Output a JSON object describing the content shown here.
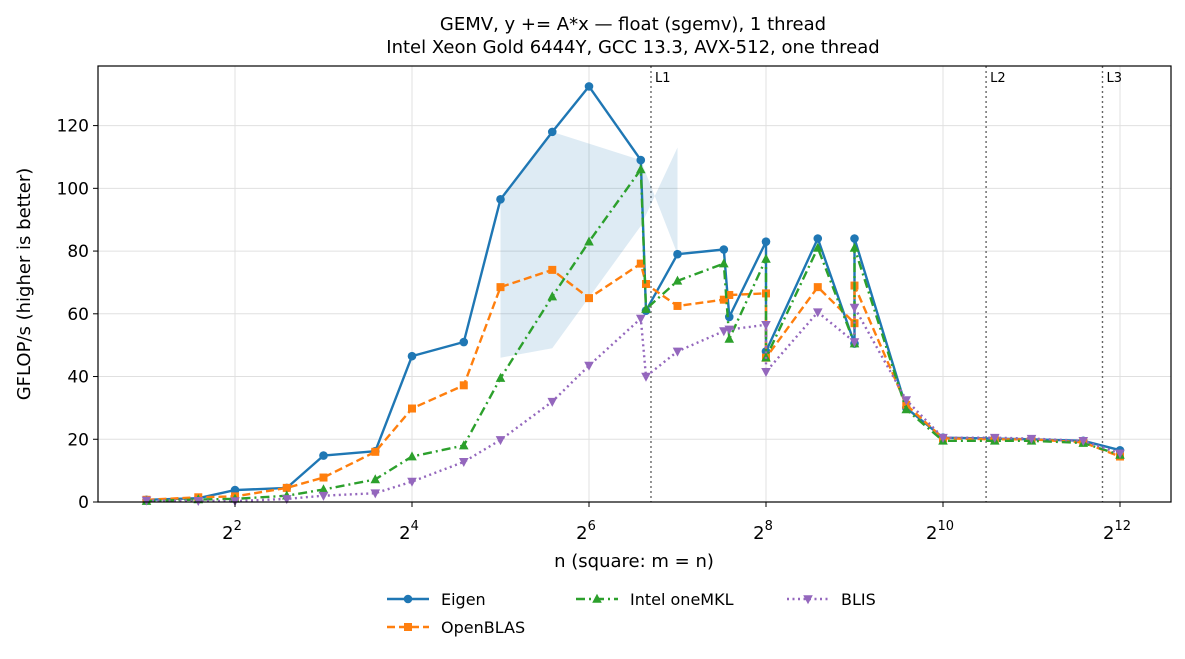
{
  "chart_data": {
    "type": "line",
    "title": "GEMV, y += A*x — float (sgemv), 1 thread",
    "subtitle": "Intel Xeon Gold 6444Y, GCC 13.3, AVX-512, one thread",
    "xlabel": "n (square: m = n)",
    "ylabel": "GFLOP/s (higher is better)",
    "x_scale": "log2",
    "x_ticks": [
      {
        "value": 4,
        "base": "2",
        "exp": "2"
      },
      {
        "value": 16,
        "base": "2",
        "exp": "4"
      },
      {
        "value": 64,
        "base": "2",
        "exp": "6"
      },
      {
        "value": 256,
        "base": "2",
        "exp": "8"
      },
      {
        "value": 1024,
        "base": "2",
        "exp": "10"
      },
      {
        "value": 4096,
        "base": "2",
        "exp": "12"
      }
    ],
    "y_ticks": [
      0,
      20,
      40,
      60,
      80,
      100,
      120
    ],
    "ylim": [
      0,
      139
    ],
    "grid": true,
    "legend_position": "bottom-center",
    "cache_lines": [
      {
        "label": "L1",
        "x": 104
      },
      {
        "label": "L2",
        "x": 1435
      },
      {
        "label": "L3",
        "x": 3571
      }
    ],
    "series": [
      {
        "name": "Eigen",
        "color": "#1f77b4",
        "marker": "circle",
        "dash": "solid",
        "band": {
          "x": [
            32,
            48,
            96,
            128
          ],
          "lower": [
            46,
            49,
            88,
            113
          ]
        },
        "points": [
          [
            2,
            0.7
          ],
          [
            3,
            1.2
          ],
          [
            4,
            3.8
          ],
          [
            6,
            4.5
          ],
          [
            8,
            14.8
          ],
          [
            12,
            16.2
          ],
          [
            16,
            46.5
          ],
          [
            24,
            51
          ],
          [
            32,
            96.5
          ],
          [
            48,
            118
          ],
          [
            64,
            132.5
          ],
          [
            96,
            109
          ],
          [
            100,
            61
          ],
          [
            128,
            79
          ],
          [
            184,
            80.5
          ],
          [
            192,
            59
          ],
          [
            256,
            83
          ],
          [
            256,
            48
          ],
          [
            384,
            84
          ],
          [
            512,
            50.5
          ],
          [
            512,
            84
          ],
          [
            768,
            30
          ],
          [
            1024,
            20.5
          ],
          [
            1536,
            20.2
          ],
          [
            2048,
            20
          ],
          [
            3072,
            19.5
          ],
          [
            4096,
            16.5
          ]
        ]
      },
      {
        "name": "OpenBLAS",
        "color": "#ff7f0e",
        "marker": "square",
        "dash": "dashed",
        "points": [
          [
            2,
            0.7
          ],
          [
            3,
            1.5
          ],
          [
            4,
            1.8
          ],
          [
            6,
            4.5
          ],
          [
            8,
            7.8
          ],
          [
            12,
            16
          ],
          [
            16,
            29.8
          ],
          [
            24,
            37.2
          ],
          [
            32,
            68.5
          ],
          [
            48,
            74
          ],
          [
            64,
            65
          ],
          [
            96,
            76
          ],
          [
            100,
            69.5
          ],
          [
            128,
            62.5
          ],
          [
            184,
            64.5
          ],
          [
            192,
            66
          ],
          [
            256,
            66.5
          ],
          [
            256,
            46
          ],
          [
            384,
            68.5
          ],
          [
            512,
            57
          ],
          [
            512,
            69
          ],
          [
            768,
            31
          ],
          [
            1024,
            20.3
          ],
          [
            1536,
            20
          ],
          [
            2048,
            20
          ],
          [
            3072,
            19
          ],
          [
            4096,
            14.5
          ]
        ]
      },
      {
        "name": "Intel oneMKL",
        "color": "#2ca02c",
        "marker": "triangle-up",
        "dash": "dashdot",
        "points": [
          [
            2,
            0.3
          ],
          [
            3,
            0.8
          ],
          [
            4,
            1.0
          ],
          [
            6,
            2.0
          ],
          [
            8,
            4.0
          ],
          [
            12,
            7.2
          ],
          [
            16,
            14.5
          ],
          [
            24,
            18
          ],
          [
            32,
            39.5
          ],
          [
            48,
            65.5
          ],
          [
            64,
            83
          ],
          [
            96,
            106
          ],
          [
            100,
            61.5
          ],
          [
            128,
            70.5
          ],
          [
            184,
            76
          ],
          [
            192,
            52
          ],
          [
            256,
            77.5
          ],
          [
            256,
            46
          ],
          [
            384,
            81
          ],
          [
            512,
            50.5
          ],
          [
            512,
            81
          ],
          [
            768,
            29.5
          ],
          [
            1024,
            19.5
          ],
          [
            1536,
            19.5
          ],
          [
            2048,
            19.5
          ],
          [
            3072,
            18.8
          ],
          [
            4096,
            15
          ]
        ]
      },
      {
        "name": "BLIS",
        "color": "#9467bd",
        "marker": "triangle-down",
        "dash": "dotted",
        "points": [
          [
            2,
            0.5
          ],
          [
            3,
            0.4
          ],
          [
            4,
            0.3
          ],
          [
            6,
            1.0
          ],
          [
            8,
            2.0
          ],
          [
            12,
            2.8
          ],
          [
            16,
            6.5
          ],
          [
            24,
            12.8
          ],
          [
            32,
            19.8
          ],
          [
            48,
            32
          ],
          [
            64,
            43.5
          ],
          [
            96,
            58.5
          ],
          [
            100,
            40
          ],
          [
            128,
            48
          ],
          [
            184,
            54.5
          ],
          [
            192,
            55
          ],
          [
            256,
            56.5
          ],
          [
            256,
            41.5
          ],
          [
            384,
            60.5
          ],
          [
            512,
            51
          ],
          [
            512,
            62
          ],
          [
            768,
            32.5
          ],
          [
            1024,
            20.5
          ],
          [
            1536,
            20.5
          ],
          [
            2048,
            20.2
          ],
          [
            3072,
            19.5
          ],
          [
            4096,
            15.5
          ]
        ]
      }
    ]
  }
}
